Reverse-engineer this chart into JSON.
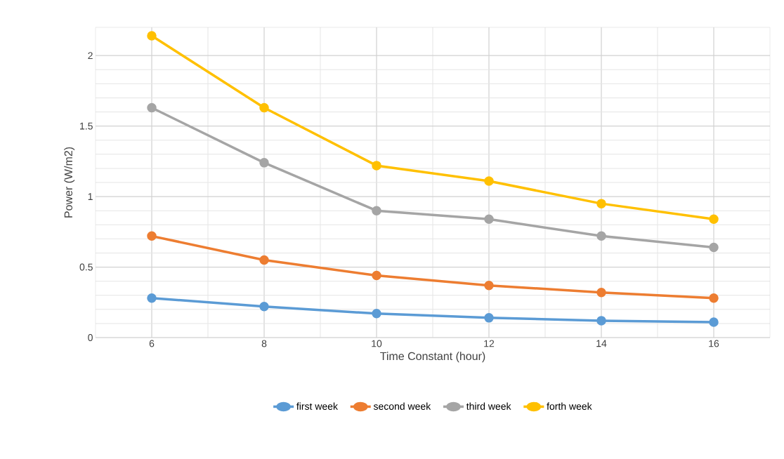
{
  "chart_data": {
    "type": "line",
    "xlabel": "Time Constant (hour)",
    "ylabel": "Power (W/m2)",
    "x": [
      6,
      8,
      10,
      12,
      14,
      16
    ],
    "series": [
      {
        "name": "first week",
        "color": "#5b9bd5",
        "values": [
          0.28,
          0.22,
          0.17,
          0.14,
          0.12,
          0.11
        ]
      },
      {
        "name": "second week",
        "color": "#ed7d31",
        "values": [
          0.72,
          0.55,
          0.44,
          0.37,
          0.32,
          0.28
        ]
      },
      {
        "name": "third week",
        "color": "#a5a5a5",
        "values": [
          1.63,
          1.24,
          0.9,
          0.84,
          0.72,
          0.64
        ]
      },
      {
        "name": "forth week",
        "color": "#ffc000",
        "values": [
          2.14,
          1.63,
          1.22,
          1.11,
          0.95,
          0.84
        ]
      }
    ],
    "xlim": [
      5,
      17
    ],
    "xticks": [
      6,
      8,
      10,
      12,
      14,
      16
    ],
    "ylim": [
      0,
      2.2
    ],
    "yticks": [
      0,
      0.5,
      1,
      1.5,
      2
    ],
    "grid": true,
    "legend": "bottom",
    "marker": "circle",
    "line_style": "solid"
  }
}
